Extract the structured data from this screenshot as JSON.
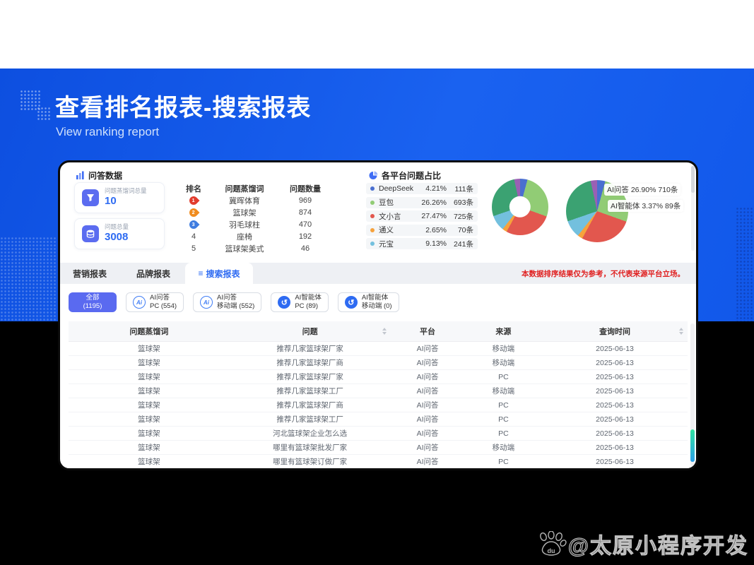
{
  "header": {
    "title": "查看排名报表-搜索报表",
    "subtitle": "View ranking report"
  },
  "colors": {
    "banner_blue": "#1158ea",
    "accent_blue": "#2e6bf2",
    "active_filter": "#5a6af0",
    "notice_red": "#e02020",
    "stat_icon_bg": "#5b6cf0",
    "scroll_thumb_top": "#2fe3a0",
    "scroll_thumb_bottom": "#2b9fe8",
    "rank_badges": [
      "#e23c2d",
      "#f08c1f",
      "#3f7de0"
    ]
  },
  "qa_panel": {
    "title": "问答数据",
    "title_icon": "bar-chart-icon",
    "stats": [
      {
        "icon": "funnel-icon",
        "label": "问题蒸馏词总量",
        "value": "10"
      },
      {
        "icon": "database-icon",
        "label": "问题总量",
        "value": "3008"
      }
    ],
    "ranking": {
      "headers": [
        "排名",
        "问题蒸馏词",
        "问题数量"
      ],
      "rows": [
        {
          "rank": "1",
          "word": "冀晖体育",
          "count": "969",
          "badge": "#e23c2d"
        },
        {
          "rank": "2",
          "word": "篮球架",
          "count": "874",
          "badge": "#f08c1f"
        },
        {
          "rank": "3",
          "word": "羽毛球柱",
          "count": "470",
          "badge": "#3f7de0"
        },
        {
          "rank": "4",
          "word": "座椅",
          "count": "192",
          "badge": null
        },
        {
          "rank": "5",
          "word": "篮球架美式",
          "count": "46",
          "badge": null
        }
      ]
    }
  },
  "platform_panel": {
    "title": "各平台问题占比",
    "title_icon": "pie-chart-icon",
    "legend": [
      {
        "name": "DeepSeek",
        "pct": "4.21%",
        "count": "111条",
        "color": "#4a6fd0"
      },
      {
        "name": "豆包",
        "pct": "26.26%",
        "count": "693条",
        "color": "#91cc75"
      },
      {
        "name": "文小言",
        "pct": "27.47%",
        "count": "725条",
        "color": "#e2574e"
      },
      {
        "name": "通义",
        "pct": "2.65%",
        "count": "70条",
        "color": "#f6a23c"
      },
      {
        "name": "元宝",
        "pct": "9.13%",
        "count": "241条",
        "color": "#73c0de"
      }
    ],
    "pie_labels": [
      {
        "name": "AI问答",
        "pct": "26.90%",
        "count": "710条"
      },
      {
        "name": "AI智能体",
        "pct": "3.37%",
        "count": "89条"
      }
    ]
  },
  "chart_data": {
    "type": "pie",
    "title": "各平台问题占比",
    "charts": [
      {
        "variant": "donut"
      },
      {
        "variant": "pie"
      }
    ],
    "slices": [
      {
        "name": "DeepSeek",
        "pct": 4.21,
        "count": 111,
        "color": "#4a6fd0"
      },
      {
        "name": "豆包",
        "pct": 26.26,
        "count": 693,
        "color": "#91cc75"
      },
      {
        "name": "文小言",
        "pct": 27.47,
        "count": 725,
        "color": "#e2574e"
      },
      {
        "name": "通义",
        "pct": 2.65,
        "count": 70,
        "color": "#f6a23c"
      },
      {
        "name": "元宝",
        "pct": 9.13,
        "count": 241,
        "color": "#73c0de"
      },
      {
        "name": "AI问答",
        "pct": 26.9,
        "count": 710,
        "color": "#3ba272"
      },
      {
        "name": "AI智能体",
        "pct": 3.37,
        "count": 89,
        "color": "#9a60b4"
      }
    ],
    "legend_position": "left"
  },
  "tabs": {
    "items": [
      {
        "label": "营销报表",
        "active": false
      },
      {
        "label": "品牌报表",
        "active": false
      },
      {
        "label": "搜索报表",
        "active": true,
        "icon": "list-icon",
        "icon_glyph": "≡"
      }
    ],
    "notice": "本数据排序结果仅为参考，不代表来源平台立场。"
  },
  "filters": [
    {
      "line1": "全部",
      "line2": "(1195)",
      "active": true,
      "icon": null
    },
    {
      "line1": "AI问答",
      "line2": "PC (554)",
      "active": false,
      "icon": "ai-badge-icon"
    },
    {
      "line1": "AI问答",
      "line2": "移动端 (552)",
      "active": false,
      "icon": "ai-badge-icon"
    },
    {
      "line1": "AI智能体",
      "line2": "PC (89)",
      "active": false,
      "icon": "agent-badge-icon"
    },
    {
      "line1": "AI智能体",
      "line2": "移动端 (0)",
      "active": false,
      "icon": "agent-badge-icon"
    }
  ],
  "table": {
    "headers": [
      "问题蒸馏词",
      "问题",
      "平台",
      "来源",
      "查询时间"
    ],
    "sortable_columns": [
      1,
      4
    ],
    "rows": [
      [
        "篮球架",
        "推荐几家篮球架厂家",
        "AI问答",
        "移动端",
        "2025-06-13"
      ],
      [
        "篮球架",
        "推荐几家篮球架厂商",
        "AI问答",
        "移动端",
        "2025-06-13"
      ],
      [
        "篮球架",
        "推荐几家篮球架厂家",
        "AI问答",
        "PC",
        "2025-06-13"
      ],
      [
        "篮球架",
        "推荐几家篮球架工厂",
        "AI问答",
        "移动端",
        "2025-06-13"
      ],
      [
        "篮球架",
        "推荐几家篮球架厂商",
        "AI问答",
        "PC",
        "2025-06-13"
      ],
      [
        "篮球架",
        "推荐几家篮球架工厂",
        "AI问答",
        "PC",
        "2025-06-13"
      ],
      [
        "篮球架",
        "河北篮球架企业怎么选",
        "AI问答",
        "PC",
        "2025-06-13"
      ],
      [
        "篮球架",
        "哪里有篮球架批发厂家",
        "AI问答",
        "移动端",
        "2025-06-13"
      ],
      [
        "篮球架",
        "哪里有篮球架订做厂家",
        "AI问答",
        "PC",
        "2025-06-13"
      ],
      [
        "篮球架",
        "哪里有篮球架供货厂家",
        "AI问答",
        "移动端",
        "2025-06-13"
      ]
    ]
  },
  "watermark": {
    "text": "@太原小程序开发",
    "icon": "baidu-paw-icon",
    "icon_text": "du"
  }
}
